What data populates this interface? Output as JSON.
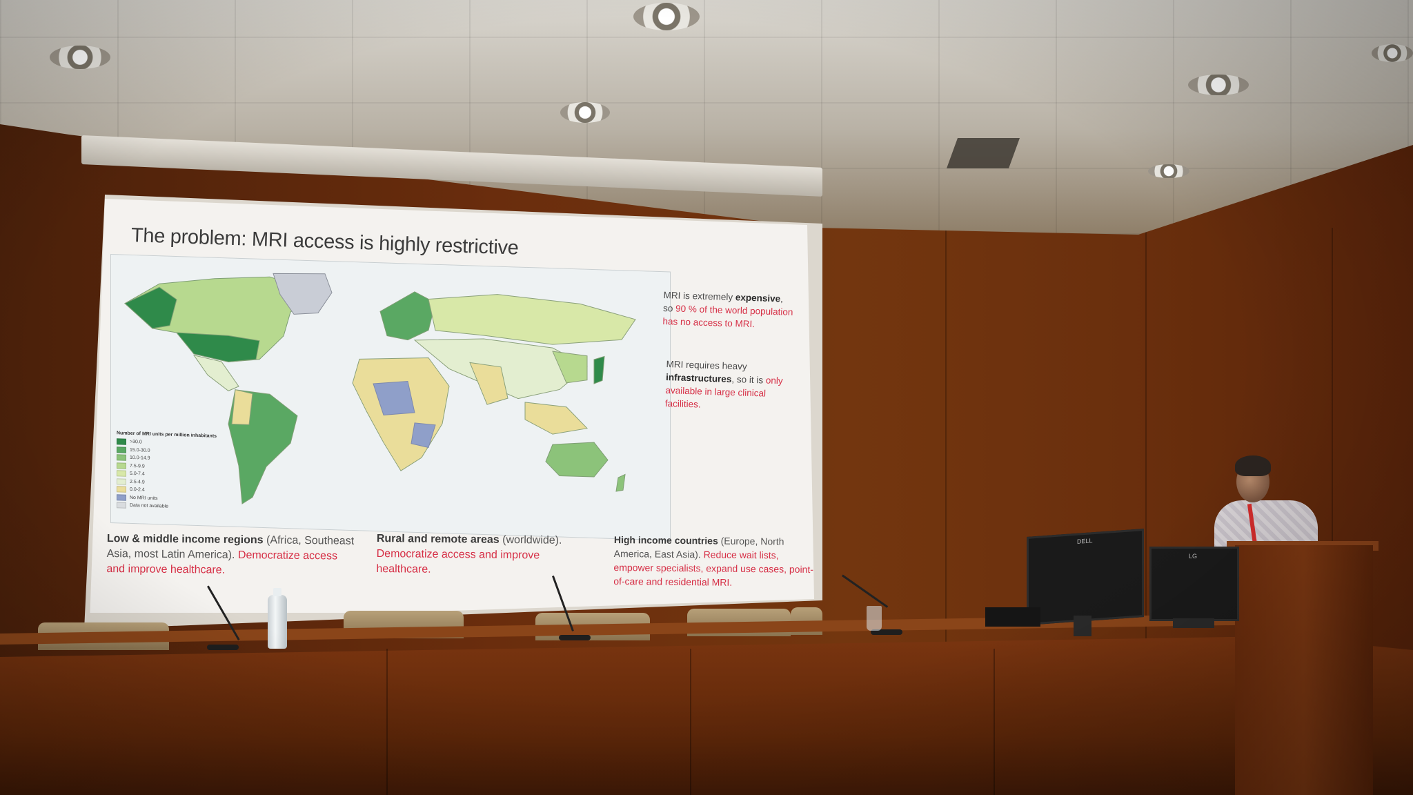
{
  "slide": {
    "title": "The problem: MRI access is highly restrictive",
    "map_legend": {
      "title": "Number of MRI units per million inhabitants",
      "entries": [
        {
          "label": ">30.0",
          "color": "#2f8a4a"
        },
        {
          "label": "15.0-30.0",
          "color": "#5aa863"
        },
        {
          "label": "10.0-14.9",
          "color": "#8cc37a"
        },
        {
          "label": "7.5-9.9",
          "color": "#b7d98f"
        },
        {
          "label": "5.0-7.4",
          "color": "#d8e8a8"
        },
        {
          "label": "2.5-4.9",
          "color": "#e3eed0"
        },
        {
          "label": "0.0-2.4",
          "color": "#eadd9a"
        },
        {
          "label": "No MRI units",
          "color": "#8f9fc9"
        },
        {
          "label": "Data not available",
          "color": "#d9dcdf"
        }
      ]
    },
    "side_notes": [
      {
        "pre": "MRI is extremely",
        "bold": "expensive",
        "mid": ", so",
        "highlight": "90 % of the world population has no access to MRI."
      },
      {
        "pre": "MRI requires heavy",
        "bold": "infrastructures",
        "mid": ", so it is",
        "highlight": "only available in large clinical facilities."
      }
    ],
    "bottom_columns": [
      {
        "bold": "Low & middle income regions",
        "detail": "(Africa, Southeast Asia, most Latin America).",
        "highlight": "Democratize access and improve healthcare."
      },
      {
        "bold": "Rural and remote areas",
        "detail": "(worldwide).",
        "highlight": "Democratize access and improve healthcare."
      },
      {
        "bold": "High income countries",
        "detail": "(Europe, North America, East Asia).",
        "highlight": "Reduce wait lists, empower specialists, expand use cases, point-of-care and residential MRI."
      }
    ]
  },
  "colors": {
    "highlight_red": "#d62f46",
    "wood": "#6a2d0d"
  },
  "monitors": {
    "left_brand": "DELL",
    "right_brand": "LG"
  }
}
